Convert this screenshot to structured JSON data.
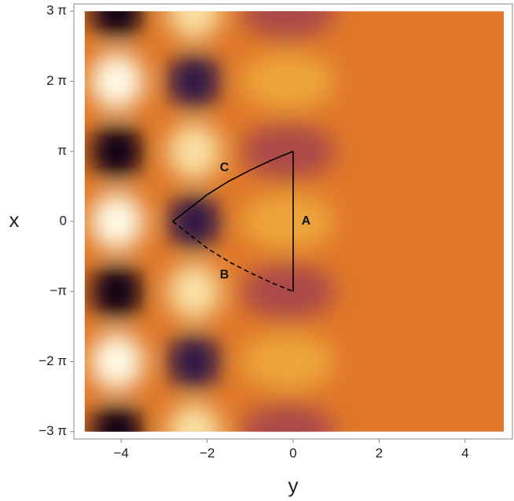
{
  "chart_data": {
    "type": "density",
    "x_label": "y",
    "y_label": "x",
    "xlim": [
      -5.1,
      5.1
    ],
    "ylim": [
      -9.75,
      9.75
    ],
    "xticks": [
      {
        "value": -4,
        "label": "−4"
      },
      {
        "value": -2,
        "label": "−2"
      },
      0,
      2,
      4
    ],
    "yticks": [
      {
        "value": 9.42478,
        "label": "3 π"
      },
      {
        "value": 6.28319,
        "label": "2 π"
      },
      {
        "value": 3.14159,
        "label": "π"
      },
      0,
      {
        "value": -3.14159,
        "label": "−π"
      },
      {
        "value": -6.28319,
        "label": "−2 π"
      },
      {
        "value": -9.42478,
        "label": "−3 π"
      }
    ],
    "extent": {
      "x": [
        -4.85,
        4.9
      ],
      "y": [
        -9.42478,
        9.42478
      ]
    },
    "x": [
      -4.1,
      -2.3,
      -0.4
    ],
    "y": [
      9.42478,
      6.28319,
      3.14159,
      0,
      -3.14159,
      -6.28319,
      -9.42478
    ],
    "values": [
      [
        -1,
        0.8,
        -0.3
      ],
      [
        1,
        -0.8,
        0.35
      ],
      [
        -1,
        0.8,
        -0.3
      ],
      [
        1,
        -0.8,
        0.35
      ],
      [
        -1,
        0.8,
        -0.3
      ],
      [
        1,
        -0.8,
        0.35
      ],
      [
        -1,
        0.8,
        -0.3
      ]
    ],
    "series": [
      {
        "name": "A",
        "dash": false,
        "x": [
          0,
          0
        ],
        "y": [
          -3.14159,
          3.14159
        ]
      },
      {
        "name": "C",
        "dash": false,
        "x": [
          -2.8,
          -2.4,
          -2.0,
          -1.5,
          -1.0,
          -0.5,
          0
        ],
        "y": [
          0,
          0.6,
          1.2,
          1.8,
          2.3,
          2.75,
          3.14159
        ]
      },
      {
        "name": "B",
        "dash": true,
        "x": [
          -2.8,
          -2.4,
          -2.0,
          -1.5,
          -1.0,
          -0.5,
          0
        ],
        "y": [
          0,
          -0.6,
          -1.2,
          -1.8,
          -2.3,
          -2.75,
          -3.14159
        ]
      }
    ],
    "annotations": [
      {
        "text": "A",
        "x": 0.3,
        "y": 0
      },
      {
        "text": "C",
        "x": -1.6,
        "y": 2.4
      },
      {
        "text": "B",
        "x": -1.6,
        "y": -2.4
      }
    ]
  }
}
